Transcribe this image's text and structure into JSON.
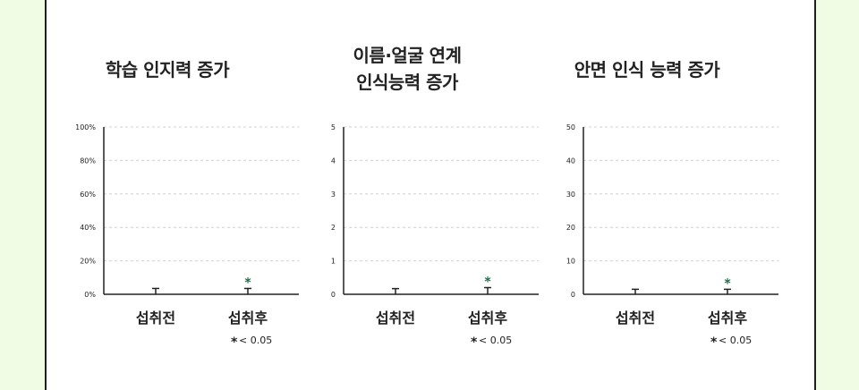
{
  "charts": [
    {
      "title_lines": [
        "학습 인지력 증가"
      ],
      "chart_data": {
        "type": "bar",
        "categories": [
          "섭취전",
          "섭취후"
        ],
        "values": [
          0,
          0
        ],
        "errors": [
          3.5,
          3.5
        ],
        "significance": [
          "",
          "*"
        ],
        "ylim": [
          0,
          100
        ],
        "yticks": [
          "0%",
          "20%",
          "40%",
          "60%",
          "80%",
          "100%"
        ],
        "note": "< 0.05",
        "note_marker": "*"
      }
    },
    {
      "title_lines": [
        "이름·얼굴 연계",
        "인식능력 증가"
      ],
      "chart_data": {
        "type": "bar",
        "categories": [
          "섭취전",
          "섭취후"
        ],
        "values": [
          0,
          0
        ],
        "errors": [
          0.17,
          0.2
        ],
        "significance": [
          "",
          "*"
        ],
        "ylim": [
          0,
          5
        ],
        "yticks": [
          "0",
          "1",
          "2",
          "3",
          "4",
          "5"
        ],
        "note": "< 0.05",
        "note_marker": "*"
      }
    },
    {
      "title_lines": [
        "안면 인식 능력 증가"
      ],
      "chart_data": {
        "type": "bar",
        "categories": [
          "섭취전",
          "섭취후"
        ],
        "values": [
          0,
          0
        ],
        "errors": [
          1.5,
          1.5
        ],
        "significance": [
          "",
          "*"
        ],
        "ylim": [
          0,
          50
        ],
        "yticks": [
          "0",
          "10",
          "20",
          "30",
          "40",
          "50"
        ],
        "note": "< 0.05",
        "note_marker": "*"
      }
    }
  ],
  "colors": {
    "axis": "#222222",
    "significance": "#1f6b4a",
    "background": "#f0fde4"
  }
}
